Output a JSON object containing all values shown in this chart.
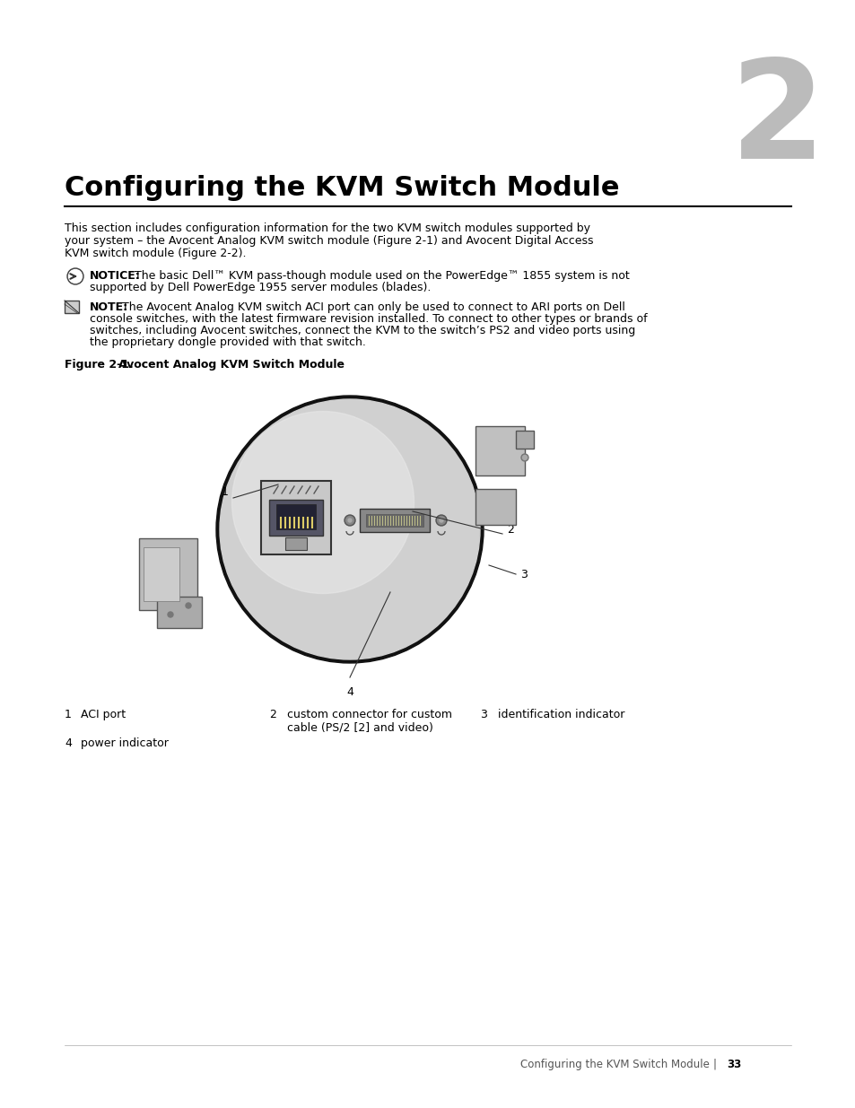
{
  "bg_color": "#ffffff",
  "chapter_number": "2",
  "chapter_number_color": "#bbbbbb",
  "chapter_number_fontsize": 110,
  "title": "Configuring the KVM Switch Module",
  "title_fontsize": 22,
  "body_text_line1": "This section includes configuration information for the two KVM switch modules supported by",
  "body_text_line2": "your system – the Avocent Analog KVM switch module (Figure 2-1) and Avocent Digital Access",
  "body_text_line3": "KVM switch module (Figure 2-2).",
  "body_fontsize": 9,
  "notice_label": "NOTICE:",
  "notice_line1": " The basic Dell™ KVM pass-though module used on the PowerEdge™ 1855 system is not",
  "notice_line2": "supported by Dell PowerEdge 1955 server modules (blades).",
  "note_label": "NOTE:",
  "note_line1": " The Avocent Analog KVM switch ACI port can only be used to connect to ARI ports on Dell",
  "note_line2": "console switches, with the latest firmware revision installed. To connect to other types or brands of",
  "note_line3": "switches, including Avocent switches, connect the KVM to the switch’s PS2 and video ports using",
  "note_line4": "the proprietary dongle provided with that switch.",
  "figure_label": "Figure 2-1.",
  "figure_caption": "Avocent Analog KVM Switch Module",
  "leg1_num": "1",
  "leg1_text": "ACI port",
  "leg2_num": "2",
  "leg2_line1": "custom connector for custom",
  "leg2_line2": "cable (PS/2 [2] and video)",
  "leg3_num": "3",
  "leg3_text": "identification indicator",
  "leg4_num": "4",
  "leg4_text": "power indicator",
  "footer_text": "Configuring the KVM Switch Module",
  "footer_sep": "|",
  "footer_page": "33"
}
